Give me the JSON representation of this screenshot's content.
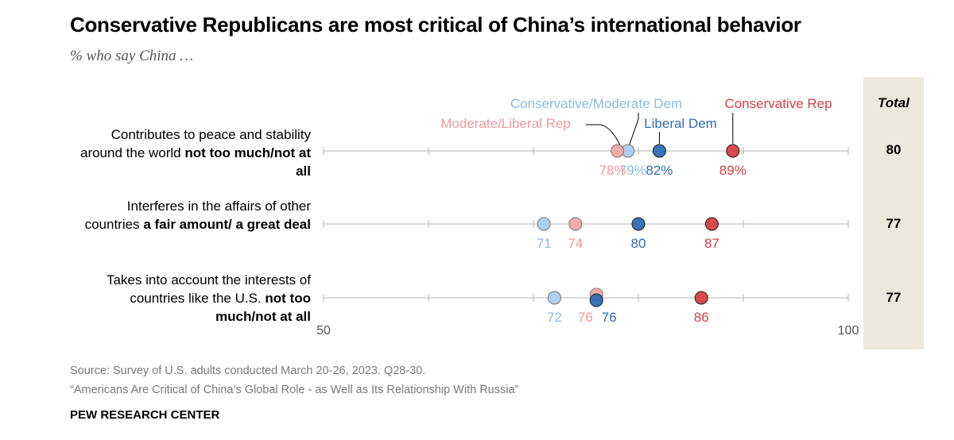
{
  "title": "Conservative Republicans are most critical of China’s international behavior",
  "subtitle": "% who say China …",
  "rows": [
    {
      "label_pre": "Contributes to peace and stability around the world",
      "label_bold": "not too much/not at all"
    },
    {
      "label_pre": "Interferes in the affairs of other countries",
      "label_bold": "a fair amount/ a great deal"
    },
    {
      "label_pre": "Takes into account the interests of countries like the U.S.",
      "label_bold": "not too much/not at all"
    }
  ],
  "total_header": "Total",
  "source": "Source: Survey of U.S. adults conducted March 20-26, 2023. Q28-30.",
  "report": "“Americans Are Critical of China’s Global Role - as Well as Its Relationship With Russia”",
  "org": "PEW RESEARCH CENTER",
  "colors": {
    "moderate_liberal_rep": "#f2a6a4",
    "conservative_moderate_dem": "#aacdee",
    "liberal_dem": "#2f6db5",
    "conservative_rep": "#d64045",
    "axis": "#b5b5b5",
    "total_panel": "#ece9dc"
  },
  "chart_data": {
    "type": "scatter",
    "xlim": [
      50,
      100
    ],
    "x_tick_labels": [
      "50",
      "100"
    ],
    "categories": [
      "Contributes to peace and stability around the world not too much/not at all",
      "Interferes in the affairs of other countries a fair amount/ a great deal",
      "Takes into account the interests of countries like the U.S. not too much/not at all"
    ],
    "series": [
      {
        "name": "Conservative/Moderate Dem",
        "values": [
          79,
          71,
          72
        ],
        "labels": [
          "79%",
          "71",
          "72"
        ],
        "color": "#aacdee",
        "label_color": "#8fb9e2"
      },
      {
        "name": "Moderate/Liberal Rep",
        "values": [
          78,
          74,
          76
        ],
        "labels": [
          "78%",
          "74",
          "76"
        ],
        "color": "#f2a6a4",
        "label_color": "#ef9a98"
      },
      {
        "name": "Liberal Dem",
        "values": [
          82,
          80,
          76
        ],
        "labels": [
          "82%",
          "80",
          "76"
        ],
        "color": "#2f6db5",
        "label_color": "#2f6db5"
      },
      {
        "name": "Conservative Rep",
        "values": [
          89,
          87,
          86
        ],
        "labels": [
          "89%",
          "87",
          "86"
        ],
        "color": "#d64045",
        "label_color": "#d64045"
      }
    ],
    "total": [
      80,
      77,
      77
    ]
  }
}
